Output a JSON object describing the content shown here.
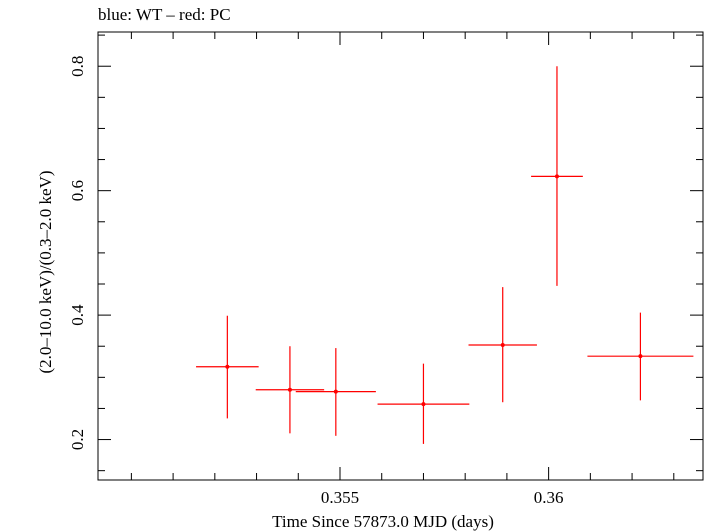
{
  "chart_data": {
    "type": "scatter",
    "title": "blue: WT – red: PC",
    "xlabel": "Time Since 57873.0 MJD (days)",
    "ylabel": "(2.0–10.0 keV)/(0.3–2.0 keV)",
    "xlim": [
      0.3492,
      0.3637
    ],
    "ylim": [
      0.135,
      0.855
    ],
    "x_ticks": [
      0.355,
      0.36
    ],
    "x_tick_labels": [
      "0.355",
      "0.36"
    ],
    "y_ticks": [
      0.2,
      0.4,
      0.6,
      0.8
    ],
    "y_tick_labels": [
      "0.2",
      "0.4",
      "0.6",
      "0.8"
    ],
    "grid": false,
    "series": [
      {
        "color": "#ff0000",
        "points": [
          {
            "x": 0.3523,
            "xerr": 0.00075,
            "y": 0.317,
            "yerr_low": 0.083,
            "yerr_high": 0.082
          },
          {
            "x": 0.3538,
            "xerr": 0.00082,
            "y": 0.28,
            "yerr_low": 0.07,
            "yerr_high": 0.07
          },
          {
            "x": 0.3549,
            "xerr": 0.00096,
            "y": 0.277,
            "yerr_low": 0.071,
            "yerr_high": 0.07
          },
          {
            "x": 0.357,
            "xerr": 0.0011,
            "y": 0.257,
            "yerr_low": 0.064,
            "yerr_high": 0.065
          },
          {
            "x": 0.3589,
            "xerr": 0.00082,
            "y": 0.352,
            "yerr_low": 0.092,
            "yerr_high": 0.093
          },
          {
            "x": 0.3602,
            "xerr": 0.00062,
            "y": 0.623,
            "yerr_low": 0.176,
            "yerr_high": 0.177
          },
          {
            "x": 0.3622,
            "xerr": 0.00127,
            "y": 0.334,
            "yerr_low": 0.071,
            "yerr_high": 0.07
          }
        ]
      }
    ]
  }
}
